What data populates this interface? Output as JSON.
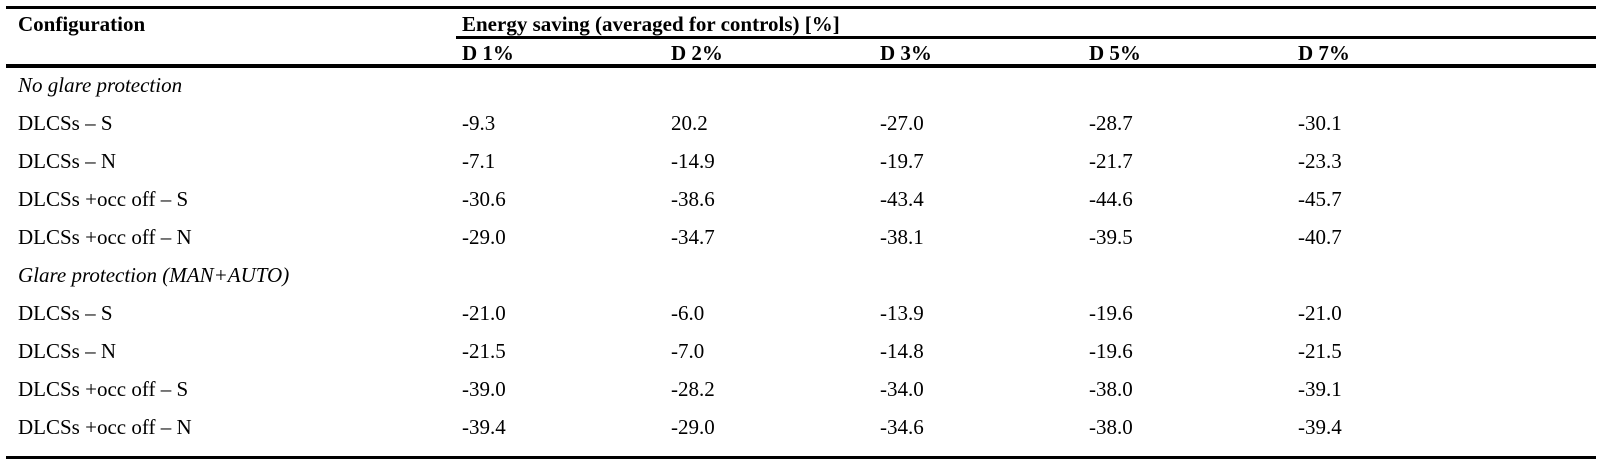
{
  "table": {
    "header": {
      "configuration": "Configuration",
      "group": "Energy saving (averaged for controls) [%]",
      "columns": [
        "D 1%",
        "D 2%",
        "D 3%",
        "D 5%",
        "D 7%"
      ]
    },
    "sections": [
      {
        "title": "No glare protection",
        "rows": [
          {
            "label": "DLCSs – S",
            "values": [
              "-9.3",
              "20.2",
              "-27.0",
              "-28.7",
              "-30.1"
            ]
          },
          {
            "label": "DLCSs – N",
            "values": [
              "-7.1",
              "-14.9",
              "-19.7",
              "-21.7",
              "-23.3"
            ]
          },
          {
            "label": "DLCSs +occ off – S",
            "values": [
              "-30.6",
              "-38.6",
              "-43.4",
              "-44.6",
              "-45.7"
            ]
          },
          {
            "label": "DLCSs +occ off – N",
            "values": [
              "-29.0",
              "-34.7",
              "-38.1",
              "-39.5",
              "-40.7"
            ]
          }
        ]
      },
      {
        "title": "Glare protection (MAN+AUTO)",
        "rows": [
          {
            "label": "DLCSs – S",
            "values": [
              "-21.0",
              "-6.0",
              "-13.9",
              "-19.6",
              "-21.0"
            ]
          },
          {
            "label": "DLCSs – N",
            "values": [
              "-21.5",
              "-7.0",
              "-14.8",
              "-19.6",
              "-21.5"
            ]
          },
          {
            "label": "DLCSs +occ off – S",
            "values": [
              "-39.0",
              "-28.2",
              "-34.0",
              "-38.0",
              "-39.1"
            ]
          },
          {
            "label": "DLCSs +occ off – N",
            "values": [
              "-39.4",
              "-29.0",
              "-34.6",
              "-38.0",
              "-39.4"
            ]
          }
        ]
      }
    ]
  }
}
